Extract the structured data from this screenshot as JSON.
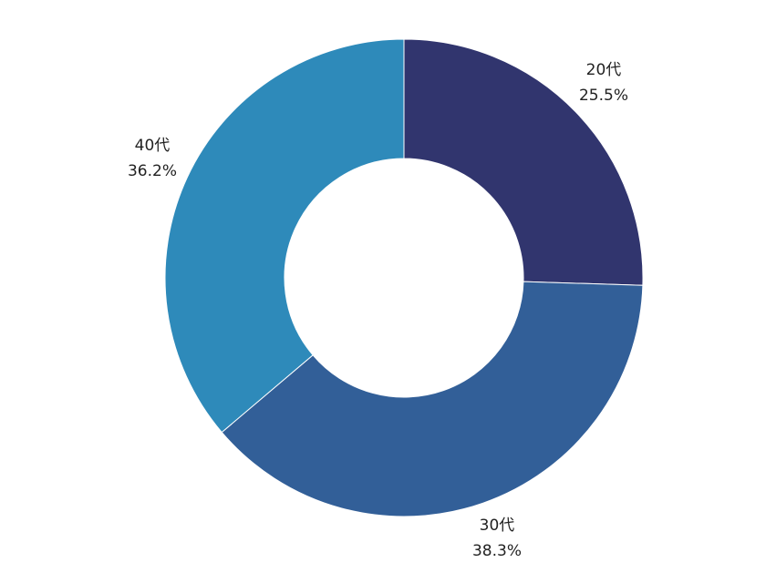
{
  "chart_data": {
    "type": "pie",
    "donut": true,
    "start_angle": "12-o'clock",
    "direction": "clockwise",
    "slices": [
      {
        "label": "20代",
        "value": 25.5,
        "value_label": "25.5%",
        "color": "#31356e"
      },
      {
        "label": "30代",
        "value": 38.3,
        "value_label": "38.3%",
        "color": "#325f98"
      },
      {
        "label": "40代",
        "value": 36.2,
        "value_label": "36.2%",
        "color": "#2e8aba"
      }
    ]
  }
}
